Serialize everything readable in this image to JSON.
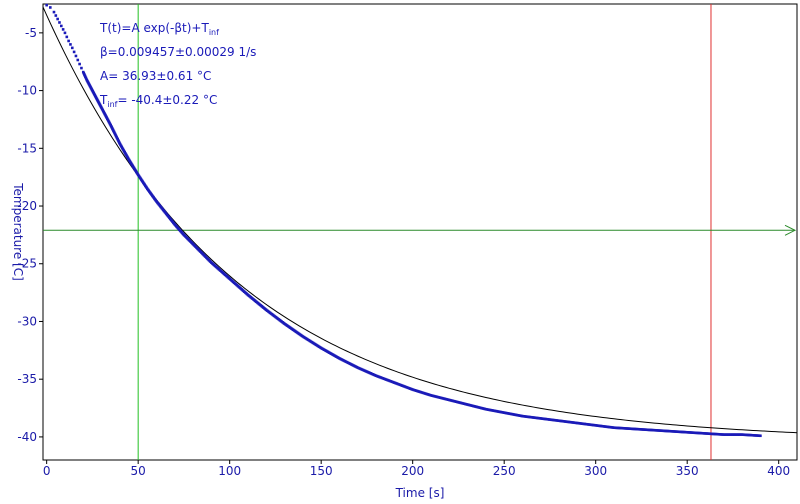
{
  "chart_data": {
    "type": "scatter",
    "title": "",
    "xlabel": "Time [s]",
    "ylabel": "Temperature [C]",
    "xlim": [
      -2,
      410
    ],
    "ylim": [
      -42,
      -2.5
    ],
    "xticks": [
      0,
      50,
      100,
      150,
      200,
      250,
      300,
      350,
      400
    ],
    "yticks": [
      -5,
      -10,
      -15,
      -20,
      -25,
      -30,
      -35,
      -40
    ],
    "grid": false,
    "legend": "none",
    "model": {
      "A": 36.93,
      "beta": 0.009457,
      "Tinf": -40.4
    },
    "series": [
      {
        "kind": "measured",
        "color": "#1a1ab8",
        "x": [
          0,
          2,
          4,
          6,
          8,
          10,
          12,
          14,
          16,
          18,
          20,
          22,
          24,
          26,
          28,
          30,
          35,
          40,
          45,
          50,
          55,
          60,
          65,
          70,
          75,
          80,
          90,
          100,
          110,
          120,
          130,
          140,
          150,
          160,
          170,
          180,
          190,
          200,
          210,
          220,
          230,
          240,
          250,
          260,
          270,
          280,
          290,
          300,
          310,
          320,
          330,
          340,
          350,
          360,
          370,
          380,
          390
        ],
        "y": [
          -2.6,
          -2.8,
          -3.2,
          -3.8,
          -4.4,
          -5.0,
          -5.7,
          -6.3,
          -7.0,
          -7.7,
          -8.4,
          -9.1,
          -9.7,
          -10.3,
          -10.9,
          -11.5,
          -13.0,
          -14.6,
          -16.0,
          -17.3,
          -18.5,
          -19.6,
          -20.6,
          -21.6,
          -22.5,
          -23.3,
          -24.9,
          -26.3,
          -27.7,
          -29.0,
          -30.2,
          -31.3,
          -32.3,
          -33.2,
          -34.0,
          -34.7,
          -35.3,
          -35.9,
          -36.4,
          -36.8,
          -37.2,
          -37.6,
          -37.9,
          -38.2,
          -38.4,
          -38.6,
          -38.8,
          -39.0,
          -39.2,
          -39.3,
          -39.4,
          -39.5,
          -39.6,
          -39.7,
          -39.8,
          -39.8,
          -39.9
        ]
      },
      {
        "kind": "fit",
        "color": "#000000"
      }
    ],
    "cursors": [
      {
        "orientation": "vertical",
        "x": 50,
        "color": "#22c022"
      },
      {
        "orientation": "vertical",
        "x": 363,
        "color": "#e03030"
      },
      {
        "orientation": "horizontal",
        "y": -22.1,
        "color": "#2a8a2a"
      }
    ],
    "annotations": {
      "line1": "T(t)=A exp(-βt)+T",
      "line1_sub": "inf",
      "line2": "β=0.009457±0.00029 1/s",
      "line3": "A= 36.93±0.61 °C",
      "line4_prefix": "T",
      "line4_sub": "inf",
      "line4_rest": "= -40.4±0.22 °C"
    }
  }
}
